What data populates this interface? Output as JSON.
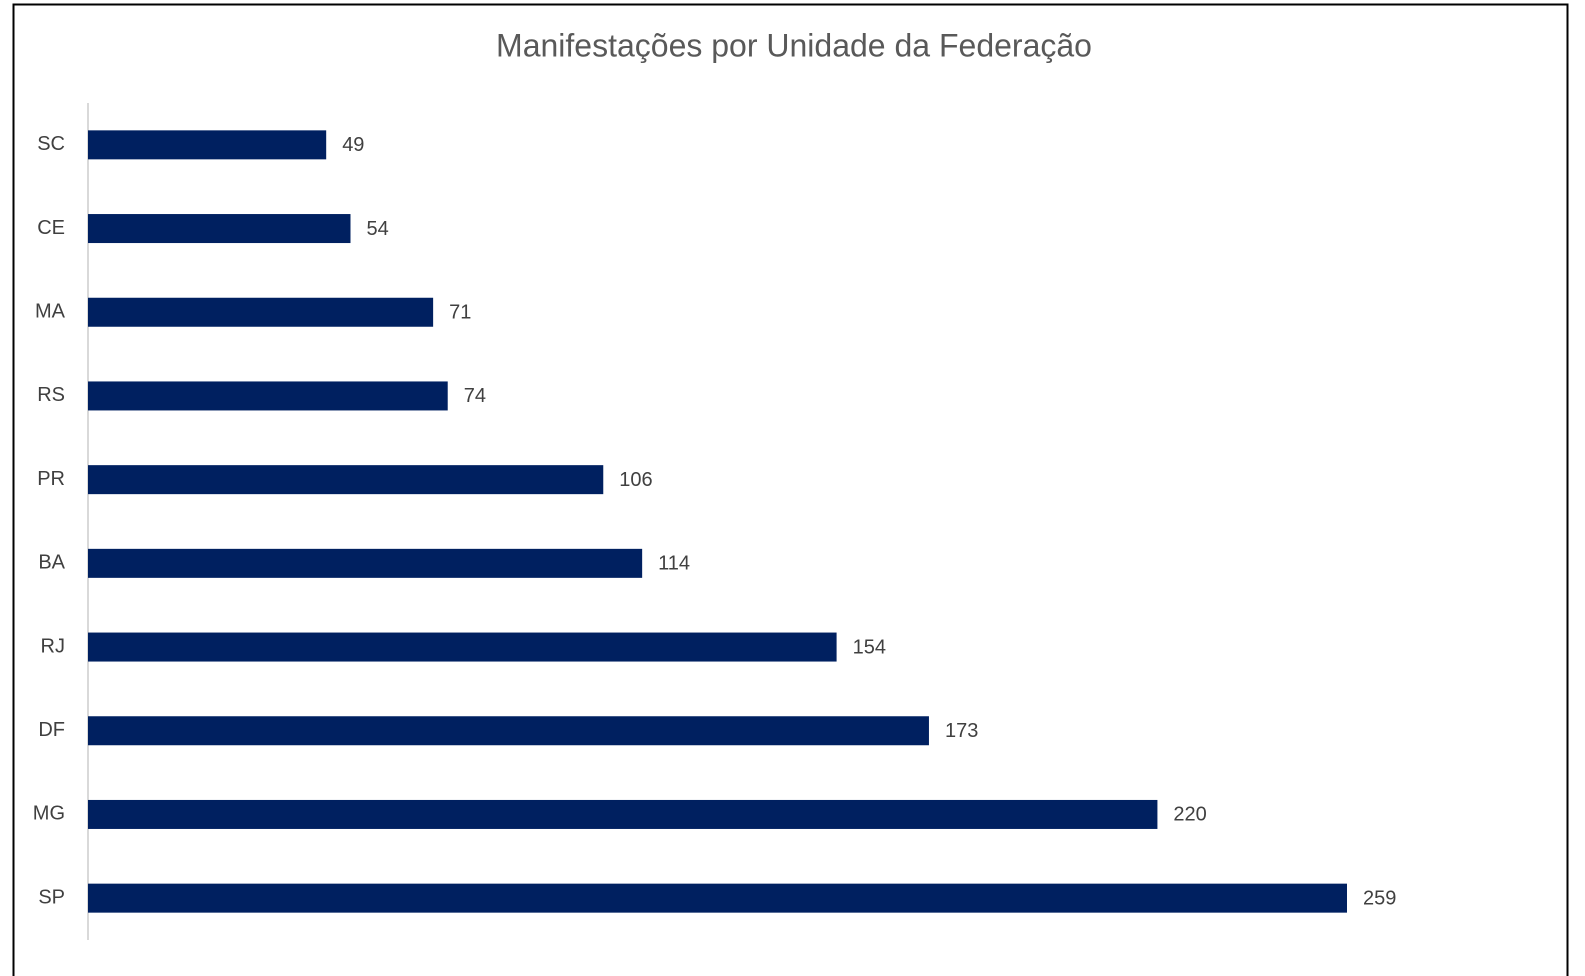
{
  "chart_data": {
    "type": "bar",
    "orientation": "horizontal",
    "title": "Manifestações por Unidade da Federação",
    "categories": [
      "SC",
      "CE",
      "MA",
      "RS",
      "PR",
      "BA",
      "RJ",
      "DF",
      "MG",
      "SP"
    ],
    "values": [
      49,
      54,
      71,
      74,
      106,
      114,
      154,
      173,
      220,
      259
    ],
    "color": "#002060"
  }
}
